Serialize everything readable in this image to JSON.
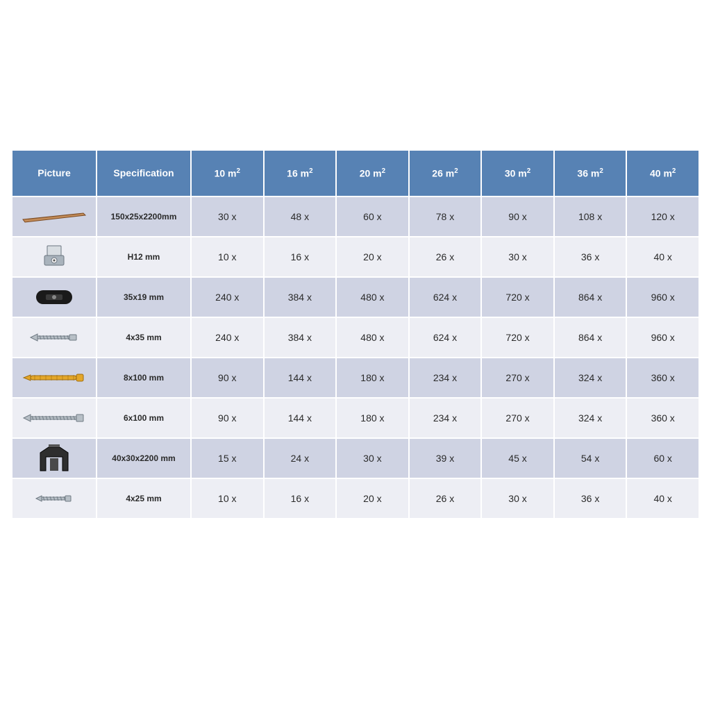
{
  "table": {
    "header_bg": "#5782b4",
    "header_fg": "#ffffff",
    "row_alt_bg_a": "#cfd3e3",
    "row_alt_bg_b": "#edeef4",
    "border_color": "#ffffff",
    "columns": {
      "picture": "Picture",
      "specification": "Specification",
      "sizes": [
        "10 m²",
        "16 m²",
        "20 m²",
        "26 m²",
        "30 m²",
        "36 m²",
        "40 m²"
      ]
    },
    "rows": [
      {
        "icon": "plank",
        "icon_colors": {
          "fill": "#c28b58",
          "stroke": "#7b4a22"
        },
        "spec": "150x25x2200mm",
        "vals": [
          "30 x",
          "48 x",
          "60 x",
          "78 x",
          "90 x",
          "108 x",
          "120 x"
        ]
      },
      {
        "icon": "clip",
        "icon_colors": {
          "fill": "#a9b3bc",
          "stroke": "#6a7580"
        },
        "spec": "H12 mm",
        "vals": [
          "10 x",
          "16 x",
          "20 x",
          "26 x",
          "30 x",
          "36 x",
          "40 x"
        ]
      },
      {
        "icon": "spacer",
        "icon_colors": {
          "fill": "#1a1a1a",
          "stroke": "#000000"
        },
        "spec": "35x19 mm",
        "vals": [
          "240 x",
          "384 x",
          "480 x",
          "624 x",
          "720 x",
          "864 x",
          "960 x"
        ]
      },
      {
        "icon": "screw-s",
        "icon_colors": {
          "fill": "#b7bfc6",
          "stroke": "#6f7a83"
        },
        "spec": "4x35 mm",
        "vals": [
          "240 x",
          "384 x",
          "480 x",
          "624 x",
          "720 x",
          "864 x",
          "960 x"
        ]
      },
      {
        "icon": "anchor",
        "icon_colors": {
          "fill": "#e4a72a",
          "stroke": "#a06d0e"
        },
        "spec": "8x100 mm",
        "vals": [
          "90 x",
          "144 x",
          "180 x",
          "234 x",
          "270 x",
          "324 x",
          "360 x"
        ]
      },
      {
        "icon": "screw-l",
        "icon_colors": {
          "fill": "#b7bfc6",
          "stroke": "#6f7a83"
        },
        "spec": "6x100 mm",
        "vals": [
          "90 x",
          "144 x",
          "180 x",
          "234 x",
          "270 x",
          "324 x",
          "360 x"
        ]
      },
      {
        "icon": "joist",
        "icon_colors": {
          "fill": "#2e2e2e",
          "stroke": "#000000"
        },
        "spec": "40x30x2200 mm",
        "vals": [
          "15 x",
          "24 x",
          "30 x",
          "39 x",
          "45 x",
          "54 x",
          "60 x"
        ]
      },
      {
        "icon": "screw-xs",
        "icon_colors": {
          "fill": "#b7bfc6",
          "stroke": "#6f7a83"
        },
        "spec": "4x25 mm",
        "vals": [
          "10 x",
          "16 x",
          "20 x",
          "26 x",
          "30 x",
          "36 x",
          "40 x"
        ]
      }
    ]
  }
}
